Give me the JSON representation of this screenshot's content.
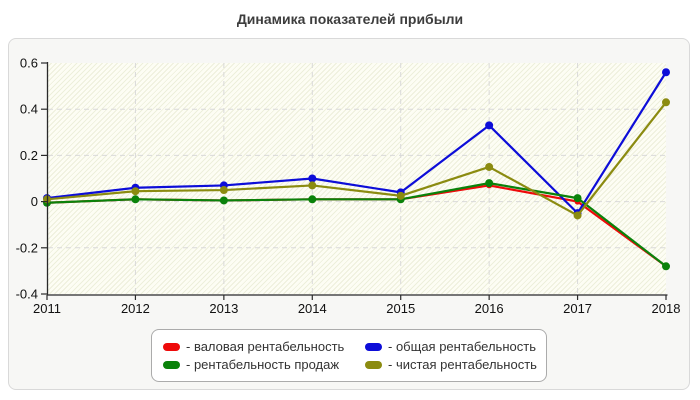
{
  "title": "Динамика показателей прибыли",
  "chart_data": {
    "type": "line",
    "title": "Динамика показателей прибыли",
    "categories": [
      "2011",
      "2012",
      "2013",
      "2014",
      "2015",
      "2016",
      "2017",
      "2018"
    ],
    "series": [
      {
        "name": "валовая рентабельность",
        "color": "#ee0a0a",
        "values": [
          -0.005,
          0.01,
          0.005,
          0.01,
          0.01,
          0.07,
          0.0,
          -0.28
        ]
      },
      {
        "name": "общая рентабельность",
        "color": "#0d0dd8",
        "values": [
          0.015,
          0.06,
          0.07,
          0.1,
          0.04,
          0.33,
          -0.05,
          0.56
        ]
      },
      {
        "name": "рентабельность продаж",
        "color": "#0a820a",
        "values": [
          -0.005,
          0.01,
          0.005,
          0.01,
          0.01,
          0.08,
          0.015,
          -0.28
        ]
      },
      {
        "name": "чистая рентабельность",
        "color": "#8b8b10",
        "values": [
          0.01,
          0.045,
          0.05,
          0.07,
          0.025,
          0.15,
          -0.06,
          0.43
        ]
      }
    ],
    "xlabel": "",
    "ylabel": "",
    "ylim": [
      -0.4,
      0.6
    ],
    "yticks": [
      "0.6",
      "0.4",
      "0.2",
      "0",
      "-0.2",
      "-0.4"
    ],
    "ytick_values": [
      0.6,
      0.4,
      0.2,
      0,
      -0.2,
      -0.4
    ],
    "grid": "dashed",
    "legend_position": "bottom"
  },
  "legend": {
    "items": [
      {
        "label": "- валовая рентабельность",
        "color": "#ee0a0a"
      },
      {
        "label": "- общая рентабельность",
        "color": "#0d0dd8"
      },
      {
        "label": "- рентабельность продаж",
        "color": "#0a820a"
      },
      {
        "label": "- чистая рентабельность",
        "color": "#8b8b10"
      }
    ]
  }
}
